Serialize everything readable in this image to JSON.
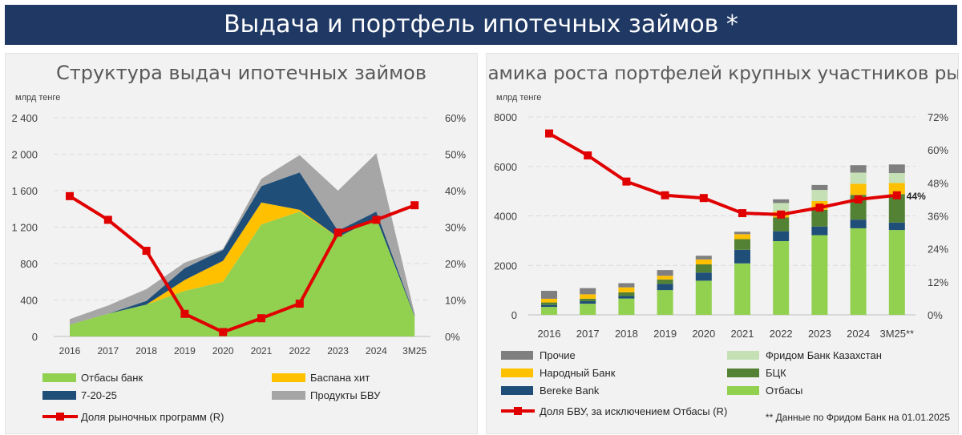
{
  "header": {
    "title": "Выдача и портфель ипотечных займов *"
  },
  "colors": {
    "banner": "#1f3864",
    "otbasy": "#92d050",
    "baspana": "#ffc000",
    "seven": "#1f4e79",
    "bvu": "#a6a6a6",
    "share_line": "#e00000",
    "prochie": "#7f7f7f",
    "fridom": "#c5e0b4",
    "narodny": "#ffc000",
    "bck": "#548235",
    "bereke": "#1f4e79"
  },
  "chart_data": [
    {
      "type": "area",
      "title": "Структура выдач ипотечных займов",
      "unit_label": "млрд тенге",
      "categories": [
        "2016",
        "2017",
        "2018",
        "2019",
        "2020",
        "2021",
        "2022",
        "2023",
        "2024",
        "3M25"
      ],
      "ylim": [
        0,
        2400
      ],
      "y_ticks": [
        "0",
        "400",
        "800",
        "1 200",
        "1 600",
        "2 000",
        "2 400"
      ],
      "y2lim": [
        0,
        60
      ],
      "y2_ticks": [
        "0%",
        "10%",
        "20%",
        "30%",
        "40%",
        "50%",
        "60%"
      ],
      "grid": true,
      "legend_position": "bottom",
      "stacked": true,
      "series": [
        {
          "name": "Отбасы банк",
          "values": [
            130,
            250,
            350,
            500,
            600,
            1230,
            1370,
            1090,
            1300,
            220
          ]
        },
        {
          "name": "Баспана хит",
          "values": [
            0,
            0,
            0,
            120,
            230,
            240,
            20,
            0,
            0,
            0
          ]
        },
        {
          "name": "7-20-25",
          "values": [
            0,
            0,
            40,
            130,
            120,
            180,
            410,
            70,
            70,
            10
          ]
        },
        {
          "name": "Продукты БВУ",
          "values": [
            60,
            90,
            130,
            60,
            10,
            80,
            190,
            440,
            640,
            20
          ]
        }
      ],
      "line_series": {
        "name": "Доля рыночных программ (R)",
        "values": [
          38.5,
          32,
          23.5,
          6.2,
          1.2,
          5,
          9,
          28.5,
          32,
          36
        ]
      }
    },
    {
      "type": "bar",
      "title": "Динамика роста портфелей крупных участников рынка",
      "unit_label": "млрд тенге",
      "categories": [
        "2016",
        "2017",
        "2018",
        "2019",
        "2020",
        "2021",
        "2022",
        "2023",
        "2024",
        "3M25**"
      ],
      "ylim": [
        0,
        8000
      ],
      "y_ticks": [
        "0",
        "2000",
        "4000",
        "6000",
        "8000"
      ],
      "y2lim": [
        0,
        72
      ],
      "y2_ticks": [
        "0%",
        "12%",
        "24%",
        "36%",
        "48%",
        "60%",
        "72%"
      ],
      "grid": true,
      "legend_position": "bottom",
      "stacked": true,
      "series": [
        {
          "name": "Отбасы",
          "values": [
            320,
            450,
            660,
            1000,
            1380,
            2080,
            2980,
            3220,
            3500,
            3430
          ]
        },
        {
          "name": "Bereke Bank",
          "values": [
            80,
            100,
            100,
            250,
            330,
            550,
            400,
            350,
            350,
            300
          ]
        },
        {
          "name": "БЦК",
          "values": [
            100,
            100,
            150,
            180,
            330,
            430,
            560,
            680,
            1000,
            1150
          ]
        },
        {
          "name": "Народный Банк",
          "values": [
            150,
            180,
            200,
            150,
            200,
            200,
            230,
            350,
            450,
            450
          ]
        },
        {
          "name": "Фридом Банк Казахстан",
          "values": [
            0,
            0,
            0,
            0,
            0,
            0,
            350,
            450,
            450,
            400
          ]
        },
        {
          "name": "Прочие",
          "values": [
            320,
            250,
            170,
            230,
            150,
            100,
            150,
            200,
            300,
            350
          ]
        }
      ],
      "line_series": {
        "name": "Доля  БВУ, за исключением Отбасы (R)",
        "values": [
          66,
          58,
          48.5,
          43.5,
          42.5,
          37,
          36.5,
          39,
          42,
          43.5
        ]
      },
      "last_point_label": "44%",
      "footnote": "** Данные по Фридом Банк на 01.01.2025"
    }
  ]
}
